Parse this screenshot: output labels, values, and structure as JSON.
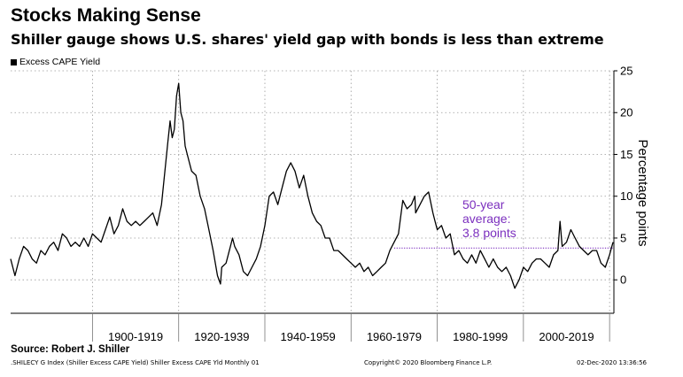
{
  "title": "Stocks Making Sense",
  "subtitle": "Shiller gauge shows U.S. shares' yield gap with bonds is less than extreme",
  "source": "Source: Robert J. Shiller",
  "footer": {
    "left": ".SHILECY G Index (Shiller Excess CAPE Yield) Shiller Excess CAPE Yld  Monthly 01",
    "middle": "Copyright© 2020 Bloomberg Finance L.P.",
    "right": "02-Dec-2020 13:36:56"
  },
  "colors": {
    "line": "#000000",
    "average": "#7b2fbe",
    "annotation": "#7b2fbe",
    "grid": "#9a9a9a"
  },
  "chart_data": {
    "type": "line",
    "ylabel": "Percentage points",
    "ylim": [
      -4,
      25
    ],
    "xlim": [
      1881,
      2021
    ],
    "yticks": [
      0,
      5,
      10,
      15,
      20,
      25
    ],
    "categories": [
      "1900-1919",
      "1920-1939",
      "1940-1959",
      "1960-1979",
      "1980-1999",
      "2000-2019"
    ],
    "category_ranges": [
      [
        1900,
        1920
      ],
      [
        1920,
        1940
      ],
      [
        1940,
        1960
      ],
      [
        1960,
        1980
      ],
      [
        1980,
        2000
      ],
      [
        2000,
        2020
      ]
    ],
    "grid": true,
    "legend_position": "top-left",
    "series": [
      {
        "name": "Excess CAPE Yield",
        "x": [
          1881,
          1882,
          1883,
          1884,
          1885,
          1886,
          1887,
          1888,
          1889,
          1890,
          1891,
          1892,
          1893,
          1894,
          1895,
          1896,
          1897,
          1898,
          1899,
          1900,
          1901,
          1902,
          1903,
          1904,
          1905,
          1906,
          1907,
          1908,
          1909,
          1910,
          1911,
          1912,
          1913,
          1914,
          1915,
          1916,
          1917,
          1917.5,
          1918,
          1918.5,
          1919,
          1919.5,
          1920,
          1920.5,
          1921,
          1921.5,
          1922,
          1923,
          1924,
          1925,
          1926,
          1927,
          1928,
          1929,
          1929.7,
          1930,
          1931,
          1932,
          1932.5,
          1933,
          1934,
          1935,
          1936,
          1937,
          1938,
          1939,
          1940,
          1941,
          1942,
          1943,
          1944,
          1945,
          1946,
          1947,
          1948,
          1949,
          1950,
          1951,
          1952,
          1953,
          1954,
          1955,
          1956,
          1957,
          1958,
          1959,
          1960,
          1961,
          1962,
          1963,
          1964,
          1965,
          1966,
          1967,
          1968,
          1969,
          1970,
          1971,
          1972,
          1973,
          1974,
          1974.8,
          1975,
          1976,
          1977,
          1978,
          1979,
          1979.5,
          1980,
          1981,
          1982,
          1983,
          1984,
          1985,
          1986,
          1987,
          1988,
          1989,
          1990,
          1991,
          1992,
          1993,
          1994,
          1995,
          1996,
          1997,
          1998,
          1999,
          2000,
          2001,
          2002,
          2003,
          2004,
          2005,
          2006,
          2007,
          2008,
          2008.5,
          2009,
          2010,
          2011,
          2012,
          2013,
          2014,
          2015,
          2016,
          2017,
          2018,
          2019,
          2020,
          2020.8
        ],
        "y": [
          2.5,
          0.5,
          2.5,
          4.0,
          3.5,
          2.5,
          2.0,
          3.5,
          3.0,
          4.0,
          4.5,
          3.5,
          5.5,
          5.0,
          4.0,
          4.5,
          4.0,
          5.0,
          4.0,
          5.5,
          5.0,
          4.5,
          6.0,
          7.5,
          5.5,
          6.5,
          8.5,
          7.0,
          6.5,
          7.0,
          6.5,
          7.0,
          7.5,
          8.0,
          6.5,
          9.0,
          14.0,
          16.5,
          19.0,
          17.0,
          18.0,
          22.0,
          23.5,
          20.0,
          19.0,
          16.0,
          15.0,
          13.0,
          12.5,
          10.0,
          8.5,
          6.0,
          3.5,
          0.5,
          -0.5,
          1.5,
          2.0,
          4.0,
          5.0,
          4.0,
          3.0,
          1.0,
          0.5,
          1.5,
          2.5,
          4.0,
          6.5,
          10.0,
          10.5,
          9.0,
          11.0,
          13.0,
          14.0,
          13.0,
          11.0,
          12.5,
          10.0,
          8.0,
          7.0,
          6.5,
          5.0,
          5.0,
          3.5,
          3.5,
          3.0,
          2.5,
          2.0,
          1.5,
          2.0,
          1.0,
          1.5,
          0.5,
          1.0,
          1.5,
          2.0,
          3.5,
          4.5,
          5.5,
          9.5,
          8.5,
          9.0,
          10.0,
          8.0,
          9.0,
          10.0,
          10.5,
          8.0,
          7.0,
          6.0,
          6.5,
          5.0,
          5.5,
          3.0,
          3.5,
          2.5,
          2.0,
          3.0,
          2.0,
          3.5,
          2.5,
          1.5,
          2.5,
          1.5,
          1.0,
          1.5,
          0.5,
          -1.0,
          0.0,
          1.5,
          1.0,
          2.0,
          2.5,
          2.5,
          2.0,
          1.5,
          3.0,
          3.5,
          7.0,
          4.0,
          4.5,
          6.0,
          5.0,
          4.0,
          3.5,
          3.0,
          3.5,
          3.5,
          2.0,
          1.5,
          3.0,
          4.5
        ]
      },
      {
        "name": "50-year average",
        "type": "hline",
        "value": 3.8,
        "x_range": [
          1970,
          2020.8
        ]
      }
    ],
    "annotations": [
      {
        "lines": [
          "50-year",
          "average:",
          "3.8 points"
        ]
      }
    ]
  }
}
